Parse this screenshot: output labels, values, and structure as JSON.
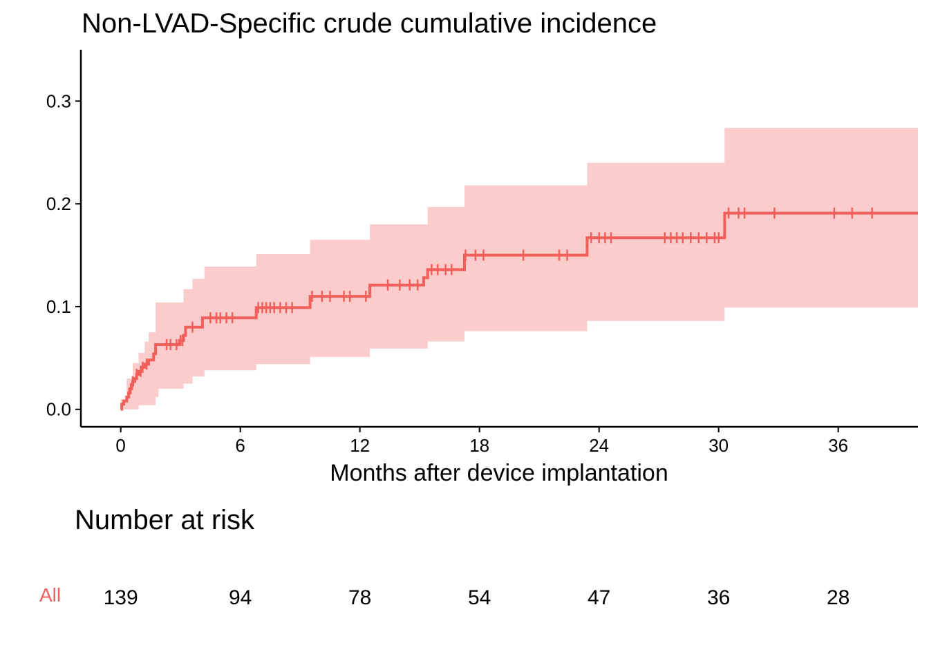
{
  "chart_data": {
    "type": "line",
    "title": "Non-LVAD-Specific crude cumulative incidence",
    "xlabel": "Months after device implantation",
    "ylabel": "",
    "xlim": [
      -2,
      40
    ],
    "ylim": [
      -0.017,
      0.35
    ],
    "x_ticks": [
      0,
      6,
      12,
      18,
      24,
      30,
      36
    ],
    "y_ticks": [
      0.0,
      0.1,
      0.2,
      0.3
    ],
    "y_tick_labels": [
      "0.0",
      "0.1",
      "0.2",
      "0.3"
    ],
    "grid": false,
    "legend": "none",
    "colors": {
      "series": "#f15f5a",
      "band": "#f8a3a3"
    },
    "series": [
      {
        "step": [
          [
            0,
            0.0
          ],
          [
            0.05,
            0.005
          ],
          [
            0.15,
            0.008
          ],
          [
            0.3,
            0.012
          ],
          [
            0.4,
            0.016
          ],
          [
            0.45,
            0.02
          ],
          [
            0.55,
            0.024
          ],
          [
            0.6,
            0.027
          ],
          [
            0.7,
            0.03
          ],
          [
            0.8,
            0.034
          ],
          [
            0.9,
            0.037
          ],
          [
            1.05,
            0.041
          ],
          [
            1.2,
            0.044
          ],
          [
            1.4,
            0.048
          ],
          [
            1.65,
            0.054
          ],
          [
            1.75,
            0.063
          ],
          [
            2.95,
            0.067
          ],
          [
            3.15,
            0.072
          ],
          [
            3.25,
            0.08
          ],
          [
            4.1,
            0.089
          ],
          [
            6.8,
            0.099
          ],
          [
            9.5,
            0.11
          ],
          [
            12.5,
            0.121
          ],
          [
            15.2,
            0.128
          ],
          [
            15.4,
            0.136
          ],
          [
            17.25,
            0.15
          ],
          [
            23.4,
            0.167
          ],
          [
            30.3,
            0.191
          ]
        ],
        "x_end": 40,
        "ci_lower": [
          [
            0,
            0.0
          ],
          [
            0.5,
            0.0
          ],
          [
            0.9,
            0.004
          ],
          [
            1.75,
            0.012
          ],
          [
            1.9,
            0.02
          ],
          [
            3.15,
            0.025
          ],
          [
            3.6,
            0.032
          ],
          [
            4.2,
            0.038
          ],
          [
            6.8,
            0.044
          ],
          [
            9.5,
            0.051
          ],
          [
            12.5,
            0.059
          ],
          [
            15.4,
            0.066
          ],
          [
            17.25,
            0.076
          ],
          [
            23.4,
            0.086
          ],
          [
            30.3,
            0.099
          ]
        ],
        "ci_upper": [
          [
            0,
            0.01
          ],
          [
            0.3,
            0.03
          ],
          [
            0.6,
            0.045
          ],
          [
            0.9,
            0.055
          ],
          [
            1.2,
            0.066
          ],
          [
            1.4,
            0.075
          ],
          [
            1.75,
            0.104
          ],
          [
            3.15,
            0.117
          ],
          [
            3.6,
            0.127
          ],
          [
            4.2,
            0.139
          ],
          [
            6.8,
            0.151
          ],
          [
            9.5,
            0.165
          ],
          [
            12.5,
            0.18
          ],
          [
            15.4,
            0.197
          ],
          [
            17.25,
            0.218
          ],
          [
            23.4,
            0.24
          ],
          [
            30.3,
            0.274
          ]
        ],
        "censor_times": [
          0.5,
          0.6,
          0.8,
          1.0,
          1.1,
          1.3,
          2.3,
          2.5,
          2.8,
          3.0,
          3.1,
          3.6,
          4.5,
          4.8,
          5.0,
          5.3,
          5.6,
          6.9,
          7.1,
          7.3,
          7.5,
          7.7,
          8.0,
          8.3,
          8.6,
          9.6,
          10.1,
          10.5,
          11.2,
          11.5,
          12.3,
          13.4,
          14.0,
          14.5,
          14.9,
          15.6,
          15.9,
          16.3,
          16.6,
          17.3,
          17.8,
          18.2,
          20.2,
          22.0,
          22.4,
          23.6,
          24.0,
          24.3,
          24.6,
          27.3,
          27.6,
          27.9,
          28.2,
          28.6,
          29.0,
          29.4,
          29.8,
          30.0,
          30.5,
          31.0,
          31.3,
          32.8,
          35.8,
          36.7,
          37.7
        ]
      }
    ]
  },
  "risk_table": {
    "title": "Number at risk",
    "group": "All",
    "times": [
      0,
      6,
      12,
      18,
      24,
      30,
      36
    ],
    "counts": [
      139,
      94,
      78,
      54,
      47,
      36,
      28
    ]
  }
}
